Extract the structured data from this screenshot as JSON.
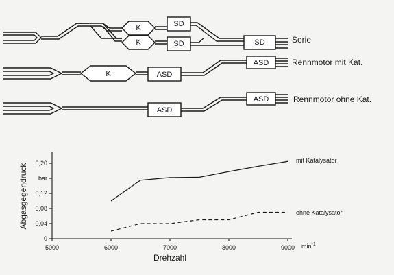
{
  "diagram": {
    "rows": [
      {
        "name": "Serie",
        "boxes": [
          "K",
          "SD",
          "K",
          "SD",
          "SD"
        ]
      },
      {
        "name": "Rennmotor mit Kat.",
        "boxes": [
          "K",
          "ASD",
          "ASD"
        ]
      },
      {
        "name": "Rennmotor ohne Kat.",
        "boxes": [
          "ASD",
          "ASD"
        ]
      }
    ]
  },
  "chart_data": {
    "type": "line",
    "ylabel": "Abgasgegendruck",
    "xlabel": "Drehzahl",
    "x_unit": "min",
    "x_unit_exponent": "-1",
    "y_unit": "bar",
    "xlim": [
      5000,
      9000
    ],
    "ylim": [
      0,
      0.22
    ],
    "x_ticks": [
      "5000",
      "6000",
      "7000",
      "8000",
      "9000"
    ],
    "y_ticks": [
      "0",
      "0,04",
      "0,08",
      "0,12",
      "bar",
      "0,20"
    ],
    "series": [
      {
        "name": "mit Katalysator",
        "style": "solid",
        "points": [
          [
            6000,
            0.1
          ],
          [
            6500,
            0.155
          ],
          [
            7000,
            0.162
          ],
          [
            7500,
            0.163
          ],
          [
            8000,
            0.178
          ],
          [
            8500,
            0.192
          ],
          [
            9000,
            0.205
          ]
        ]
      },
      {
        "name": "ohne Katalysator",
        "style": "dashed",
        "points": [
          [
            6000,
            0.02
          ],
          [
            6500,
            0.04
          ],
          [
            7000,
            0.04
          ],
          [
            7500,
            0.05
          ],
          [
            8000,
            0.05
          ],
          [
            8500,
            0.07
          ],
          [
            9000,
            0.07
          ]
        ]
      }
    ]
  }
}
